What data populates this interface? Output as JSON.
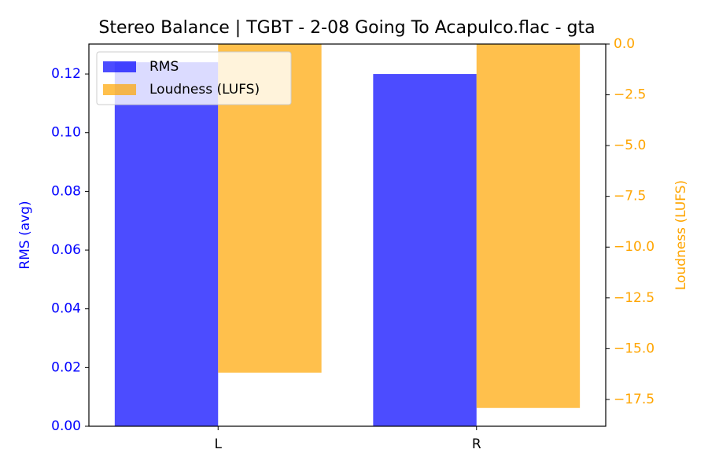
{
  "chart_data": {
    "type": "bar",
    "title": "Stereo Balance | TGBT - 2-08 Going To Acapulco.flac - gta",
    "categories": [
      "L",
      "R"
    ],
    "series": [
      {
        "name": "RMS",
        "color": "#0000ff",
        "values": [
          0.124,
          0.12
        ]
      },
      {
        "name": "Loudness (LUFS)",
        "color": "#ffa500",
        "values": [
          -16.18,
          -17.92
        ],
        "axis": "y2"
      }
    ],
    "y_label": "RMS (avg)",
    "y2_label": "Loudness (LUFS)",
    "ylim": [
      0,
      0.1302
    ],
    "yticks": [
      {
        "value": 0,
        "label": "0.00"
      },
      {
        "value": 0.02,
        "label": "0.02"
      },
      {
        "value": 0.04,
        "label": "0.04"
      },
      {
        "value": 0.06,
        "label": "0.06"
      },
      {
        "value": 0.08,
        "label": "0.08"
      },
      {
        "value": 0.1,
        "label": "0.10"
      },
      {
        "value": 0.12,
        "label": "0.12"
      }
    ],
    "y2lim": [
      -18.82,
      0
    ],
    "y2ticks": [
      {
        "value": 0,
        "label": "0.0"
      },
      {
        "value": -2.5,
        "label": "−2.5"
      },
      {
        "value": -5,
        "label": "−5.0"
      },
      {
        "value": -7.5,
        "label": "−7.5"
      },
      {
        "value": -10,
        "label": "−10.0"
      },
      {
        "value": -12.5,
        "label": "−12.5"
      },
      {
        "value": -15,
        "label": "−15.0"
      },
      {
        "value": -17.5,
        "label": "−17.5"
      }
    ],
    "legend": "upper left"
  }
}
